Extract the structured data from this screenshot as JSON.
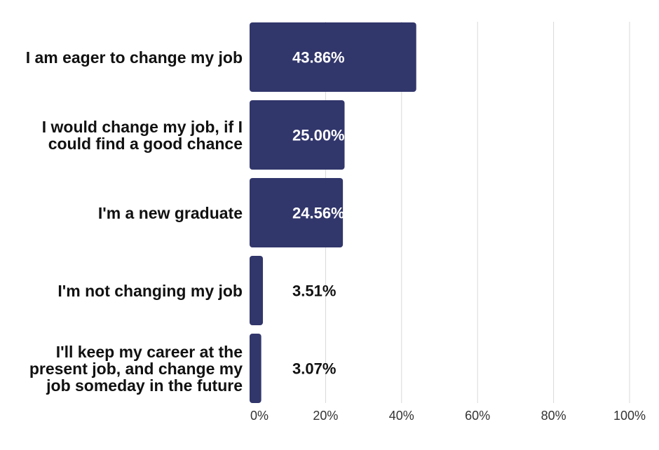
{
  "chart_data": {
    "type": "bar",
    "orientation": "horizontal",
    "categories": [
      "I am eager to change my job",
      "I would change my job, if I could find a good chance",
      "I'm a new graduate",
      "I'm not changing my job",
      "I'll keep my career at the present job, and change my job someday in the future"
    ],
    "category_lines": [
      [
        "I am eager to change my job"
      ],
      [
        "I would change my job, if I",
        "could find a good chance"
      ],
      [
        "I'm a new graduate"
      ],
      [
        "I'm not changing my job"
      ],
      [
        "I'll keep my career at the",
        "present job, and change my",
        "job someday in the future"
      ]
    ],
    "values": [
      43.86,
      25.0,
      24.56,
      3.51,
      3.07
    ],
    "data_labels": [
      "43.86%",
      "25.00%",
      "24.56%",
      "3.51%",
      "3.07%"
    ],
    "xlim": [
      0,
      100
    ],
    "xticks": [
      0,
      20,
      40,
      60,
      80,
      100
    ],
    "xtick_labels": [
      "0%",
      "20%",
      "40%",
      "60%",
      "80%",
      "100%"
    ],
    "title": "",
    "xlabel": "",
    "ylabel": "",
    "grid": "vertical",
    "legend": "none",
    "colors": {
      "bar": "#31366b",
      "grid": "#d9d9d9",
      "label_inside": "#ffffff",
      "label_outside": "#111111",
      "tick": "#333333"
    }
  }
}
